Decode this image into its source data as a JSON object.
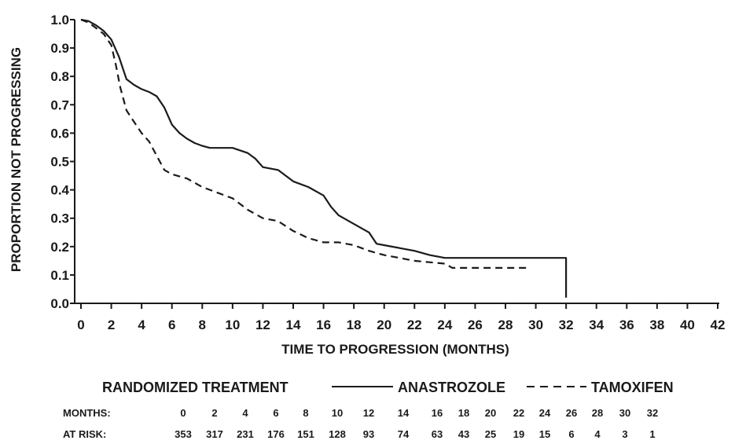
{
  "chart_data": {
    "type": "line",
    "title": "",
    "xlabel": "TIME TO PROGRESSION (MONTHS)",
    "ylabel": "PROPORTION NOT PROGRESSING",
    "xlim": [
      0,
      42
    ],
    "ylim": [
      0,
      1.0
    ],
    "x_ticks": [
      "0",
      "2",
      "4",
      "6",
      "8",
      "10",
      "12",
      "14",
      "16",
      "18",
      "20",
      "22",
      "24",
      "26",
      "28",
      "30",
      "32",
      "34",
      "36",
      "38",
      "40",
      "42"
    ],
    "y_ticks": [
      "0.0",
      "0.1",
      "0.2",
      "0.3",
      "0.4",
      "0.5",
      "0.6",
      "0.7",
      "0.8",
      "0.9",
      "1.0"
    ],
    "grid": false,
    "legend": {
      "position": "bottom",
      "heading": "RANDOMIZED TREATMENT",
      "entries": [
        "ANASTROZOLE",
        "TAMOXIFEN"
      ]
    },
    "series": [
      {
        "name": "ANASTROZOLE",
        "style": "solid",
        "color": "#1a1a1a",
        "points": [
          [
            0,
            1.0
          ],
          [
            0.5,
            0.995
          ],
          [
            1,
            0.98
          ],
          [
            1.5,
            0.96
          ],
          [
            2,
            0.93
          ],
          [
            2.5,
            0.87
          ],
          [
            3,
            0.79
          ],
          [
            3.5,
            0.77
          ],
          [
            4,
            0.755
          ],
          [
            4.5,
            0.745
          ],
          [
            5,
            0.73
          ],
          [
            5.5,
            0.69
          ],
          [
            6,
            0.63
          ],
          [
            6.5,
            0.6
          ],
          [
            7,
            0.58
          ],
          [
            7.5,
            0.565
          ],
          [
            8,
            0.555
          ],
          [
            8.5,
            0.548
          ],
          [
            9,
            0.548
          ],
          [
            10,
            0.548
          ],
          [
            11,
            0.53
          ],
          [
            11.5,
            0.51
          ],
          [
            12,
            0.48
          ],
          [
            13,
            0.47
          ],
          [
            14,
            0.43
          ],
          [
            15,
            0.41
          ],
          [
            16,
            0.38
          ],
          [
            16.5,
            0.34
          ],
          [
            17,
            0.31
          ],
          [
            18,
            0.28
          ],
          [
            19,
            0.25
          ],
          [
            19.5,
            0.21
          ],
          [
            20,
            0.205
          ],
          [
            22,
            0.185
          ],
          [
            23,
            0.17
          ],
          [
            24,
            0.16
          ],
          [
            28,
            0.16
          ],
          [
            30,
            0.16
          ],
          [
            32,
            0.16
          ],
          [
            32,
            0.02
          ]
        ]
      },
      {
        "name": "TAMOXIFEN",
        "style": "dashed",
        "color": "#1a1a1a",
        "points": [
          [
            0,
            1.0
          ],
          [
            0.5,
            0.99
          ],
          [
            1,
            0.97
          ],
          [
            1.5,
            0.95
          ],
          [
            2,
            0.91
          ],
          [
            2.3,
            0.84
          ],
          [
            2.6,
            0.76
          ],
          [
            3,
            0.68
          ],
          [
            3.5,
            0.64
          ],
          [
            4,
            0.6
          ],
          [
            4.5,
            0.57
          ],
          [
            5,
            0.52
          ],
          [
            5.5,
            0.47
          ],
          [
            6,
            0.455
          ],
          [
            7,
            0.44
          ],
          [
            8,
            0.41
          ],
          [
            9,
            0.39
          ],
          [
            10,
            0.37
          ],
          [
            11,
            0.33
          ],
          [
            12,
            0.3
          ],
          [
            13,
            0.29
          ],
          [
            14,
            0.255
          ],
          [
            15,
            0.23
          ],
          [
            16,
            0.215
          ],
          [
            17,
            0.215
          ],
          [
            18,
            0.205
          ],
          [
            19,
            0.185
          ],
          [
            20,
            0.17
          ],
          [
            21,
            0.16
          ],
          [
            22,
            0.15
          ],
          [
            23,
            0.145
          ],
          [
            24,
            0.14
          ],
          [
            24.5,
            0.125
          ],
          [
            26,
            0.125
          ],
          [
            28,
            0.125
          ],
          [
            29.5,
            0.125
          ]
        ]
      }
    ],
    "at_risk": {
      "months_label": "MONTHS:",
      "at_risk_label": "AT RISK:",
      "months": [
        "0",
        "2",
        "4",
        "6",
        "8",
        "10",
        "12",
        "14",
        "16",
        "18",
        "20",
        "22",
        "24",
        "26",
        "28",
        "30",
        "32"
      ],
      "counts": [
        "353",
        "317",
        "231",
        "176",
        "151",
        "128",
        "93",
        "74",
        "63",
        "43",
        "25",
        "19",
        "15",
        "6",
        "4",
        "3",
        "1"
      ]
    }
  }
}
